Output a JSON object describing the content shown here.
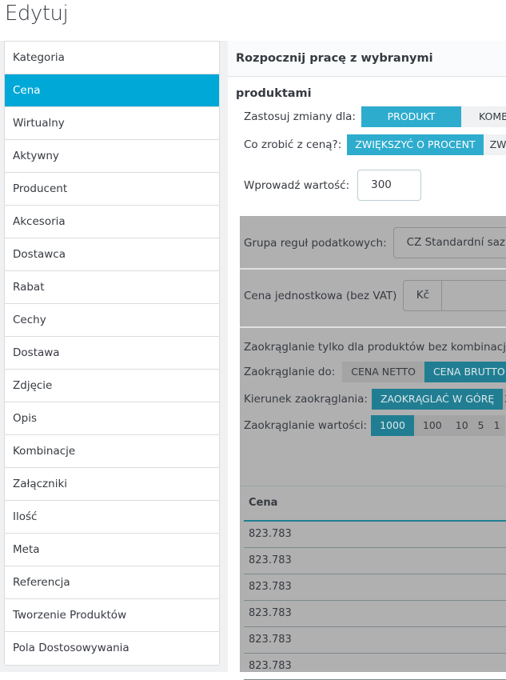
{
  "page_title": "Edytuj",
  "sidebar": {
    "items": [
      {
        "label": "Kategoria"
      },
      {
        "label": "Cena",
        "active": true
      },
      {
        "label": "Wirtualny"
      },
      {
        "label": "Aktywny"
      },
      {
        "label": "Producent"
      },
      {
        "label": "Akcesoria"
      },
      {
        "label": "Dostawca"
      },
      {
        "label": "Rabat"
      },
      {
        "label": "Cechy"
      },
      {
        "label": "Dostawa"
      },
      {
        "label": "Zdjęcie"
      },
      {
        "label": "Opis"
      },
      {
        "label": "Kombinacje"
      },
      {
        "label": "Załączniki"
      },
      {
        "label": "Ilość"
      },
      {
        "label": "Meta"
      },
      {
        "label": "Referencja"
      },
      {
        "label": "Tworzenie Produktów"
      },
      {
        "label": "Pola Dostosowywania"
      }
    ]
  },
  "main": {
    "header": "Rozpocznij pracę z wybranymi produktami",
    "apply_label": "Zastosuj zmiany dla:",
    "apply_options": [
      "PRODUKT",
      "KOMBI"
    ],
    "action_label": "Co zrobić z ceną?:",
    "action_options": [
      "ZWIĘKSZYĆ O PROCENT",
      "ZWIĘK"
    ],
    "value_label": "Wprowadź wartość:",
    "value": "300",
    "tax_label": "Grupa reguł podatkowych:",
    "tax_value": "CZ Standardní sazba",
    "unit_price_label": "Cena jednostkowa (bez VAT)",
    "currency": "Kč",
    "rounding_note": "Zaokrąglanie tylko dla produktów bez kombinacji",
    "round_to_label": "Zaokrąglanie do:",
    "round_to_options": [
      "CENA NETTO",
      "CENA BRUTTO"
    ],
    "direction_label": "Kierunek zaokrąglania:",
    "direction_options": [
      "ZAOKRĄGLAĆ W GÓRĘ",
      "ZA"
    ],
    "round_value_label": "Zaokrąglanie wartości:",
    "round_value_options": [
      "1000",
      "100",
      "10",
      "5",
      "1"
    ],
    "table": {
      "header": "Cena",
      "rows": [
        "823.783",
        "823.783",
        "823.783",
        "823.783",
        "823.783",
        "823.783"
      ]
    }
  },
  "colors": {
    "active": "#00a8d8",
    "button_on": "#2eacce",
    "overlay": "#b0b0b0",
    "overlay_on": "#217e92"
  }
}
